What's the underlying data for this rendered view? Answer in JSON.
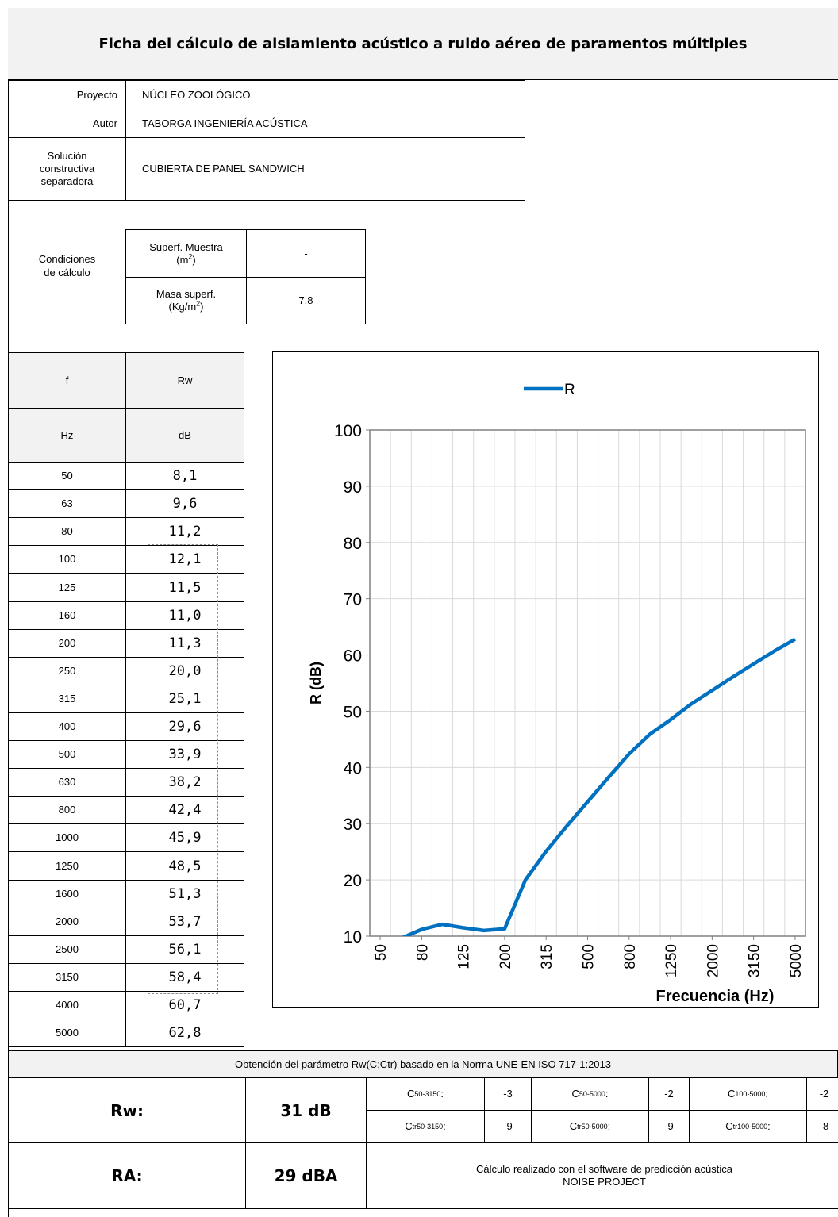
{
  "title": "Ficha del cálculo de aislamiento acústico a ruido aéreo de paramentos múltiples",
  "project": {
    "rows": [
      {
        "label": "Proyecto",
        "value": "NÚCLEO ZOOLÓGICO"
      },
      {
        "label": "Autor",
        "value": "TABORGA INGENIERÍA ACÚSTICA"
      }
    ],
    "solucion_label_lines": [
      "Solución",
      "constructiva",
      "separadora"
    ],
    "solucion_value": "CUBIERTA DE PANEL SANDWICH"
  },
  "conditions": {
    "label_lines": [
      "Condiciones",
      "de cálculo"
    ],
    "superf_label": "Superf. Muestra",
    "superf_unit_base": "(m",
    "superf_unit_sup": "2",
    "superf_unit_end": ")",
    "superf_value": "-",
    "masa_label": "Masa superf.",
    "masa_unit_base": "(Kg/m",
    "masa_unit_sup": "2",
    "masa_unit_end": ")",
    "masa_value": "7,8"
  },
  "table": {
    "header1": [
      "f",
      "Rw"
    ],
    "header2": [
      "Hz",
      "dB"
    ],
    "rows": [
      [
        "50",
        "8,1"
      ],
      [
        "63",
        "9,6"
      ],
      [
        "80",
        "11,2"
      ],
      [
        "100",
        "12,1"
      ],
      [
        "125",
        "11,5"
      ],
      [
        "160",
        "11,0"
      ],
      [
        "200",
        "11,3"
      ],
      [
        "250",
        "20,0"
      ],
      [
        "315",
        "25,1"
      ],
      [
        "400",
        "29,6"
      ],
      [
        "500",
        "33,9"
      ],
      [
        "630",
        "38,2"
      ],
      [
        "800",
        "42,4"
      ],
      [
        "1000",
        "45,9"
      ],
      [
        "1250",
        "48,5"
      ],
      [
        "1600",
        "51,3"
      ],
      [
        "2000",
        "53,7"
      ],
      [
        "2500",
        "56,1"
      ],
      [
        "3150",
        "58,4"
      ],
      [
        "4000",
        "60,7"
      ],
      [
        "5000",
        "62,8"
      ]
    ]
  },
  "chart_data": {
    "type": "line",
    "legend": "R",
    "xlabel": "Frecuencia (Hz)",
    "ylabel": "R (dB)",
    "ylim": [
      10,
      100
    ],
    "yticks": [
      10,
      20,
      30,
      40,
      50,
      60,
      70,
      80,
      90,
      100
    ],
    "x": [
      "50",
      "63",
      "80",
      "100",
      "125",
      "160",
      "200",
      "250",
      "315",
      "400",
      "500",
      "630",
      "800",
      "1000",
      "1250",
      "1600",
      "2000",
      "2500",
      "3150",
      "4000",
      "5000"
    ],
    "xtick_labels": [
      "50",
      "80",
      "125",
      "200",
      "315",
      "500",
      "800",
      "1250",
      "2000",
      "3150",
      "5000"
    ],
    "series": [
      {
        "name": "R",
        "values": [
          8.1,
          9.6,
          11.2,
          12.1,
          11.5,
          11.0,
          11.3,
          20.0,
          25.1,
          29.6,
          33.9,
          38.2,
          42.4,
          45.9,
          48.5,
          51.3,
          53.7,
          56.1,
          58.4,
          60.7,
          62.8
        ]
      }
    ],
    "grid": true,
    "line_color": "#0070c0"
  },
  "footer": {
    "norma": "Obtención del parámetro Rw(C;Ctr) basado en la Norma UNE-EN ISO 717-1:2013",
    "rw_label": "Rw:",
    "rw_value": "31 dB",
    "ra_label": "RA:",
    "ra_value": "29 dBA",
    "c_row": [
      {
        "base": "C",
        "sub": "50-3150",
        "suffix": ":",
        "value": "-3"
      },
      {
        "base": "C",
        "sub": "50-5000",
        "suffix": ":",
        "value": "-2"
      },
      {
        "base": "C",
        "sub": "100-5000",
        "suffix": ":",
        "value": "-2"
      }
    ],
    "ctr_row": [
      {
        "base": "C",
        "sub": "tr50-3150",
        "suffix": ":",
        "value": "-9"
      },
      {
        "base": "C",
        "sub": "tr50-5000",
        "suffix": ":",
        "value": "-9"
      },
      {
        "base": "C",
        "sub": "tr100-5000",
        "suffix": ":",
        "value": "-8"
      }
    ],
    "software_line1": "Cálculo realizado con el software de predicción acústica",
    "software_line2": "NOISE PROJECT"
  }
}
